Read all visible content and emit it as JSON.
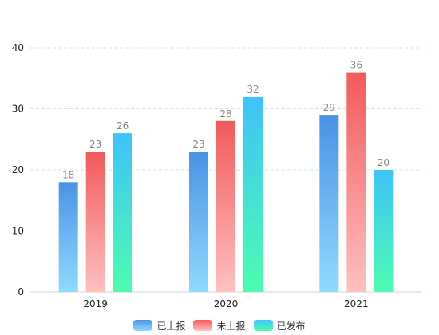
{
  "chart_data": {
    "type": "bar",
    "title": "",
    "xlabel": "",
    "ylabel": "",
    "categories": [
      "2019",
      "2020",
      "2021"
    ],
    "ylim": [
      0,
      40
    ],
    "yticks": [
      0,
      10,
      20,
      30,
      40
    ],
    "grid": true,
    "legend_position": "bottom",
    "series": [
      {
        "name": "已上报",
        "values": [
          18,
          23,
          29
        ],
        "color_top": "#4a93e6",
        "color_bottom": "#8fdaff"
      },
      {
        "name": "未上报",
        "values": [
          23,
          28,
          36
        ],
        "color_top": "#f25a5a",
        "color_bottom": "#ffc0c0"
      },
      {
        "name": "已发布",
        "values": [
          26,
          32,
          20
        ],
        "color_top": "#3ec3fa",
        "color_bottom": "#4dfcb0"
      }
    ]
  }
}
